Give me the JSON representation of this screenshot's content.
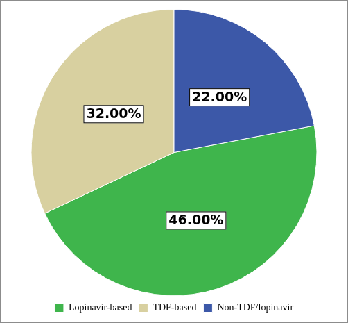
{
  "chart_data": {
    "type": "pie",
    "categories": [
      "Lopinavir-based",
      "TDF-based",
      "Non-TDF/lopinavir"
    ],
    "values": [
      46,
      32,
      22
    ],
    "value_labels": [
      "46.00%",
      "32.00%",
      "22.00%"
    ],
    "colors": [
      "#3fb54c",
      "#d8d0a0",
      "#3c58a8"
    ],
    "data_labels": true,
    "legend": "bottom"
  }
}
